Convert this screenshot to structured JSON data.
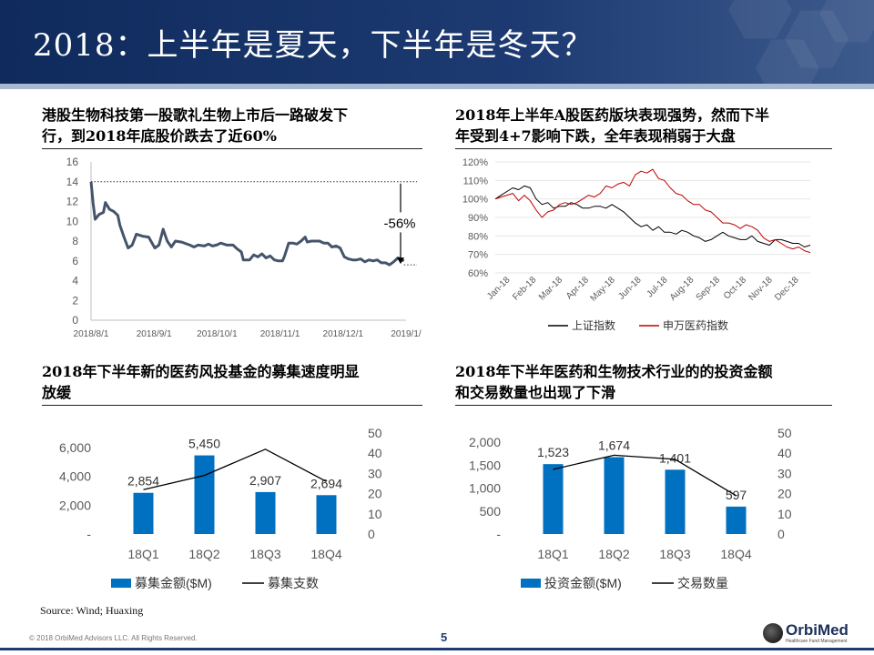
{
  "slide": {
    "title": "2018：上半年是夏天，下半年是冬天？",
    "source": "Source: Wind; Huaxing",
    "copyright": "© 2018 OrbiMed Advisors LLC. All Rights Reserved.",
    "page_number": "5",
    "logo": {
      "name": "OrbiMed",
      "tagline": "Healthcare Fund Management"
    }
  },
  "panels": [
    {
      "title_lines": [
        "港股生物科技第一股歌礼生物上市后一路破发下",
        "行，到2018年底股价跌去了近60%"
      ]
    },
    {
      "title_lines": [
        "2018年上半年A股医药版块表现强势，然而下半",
        "年受到4+7影响下跌，全年表现稍弱于大盘"
      ]
    },
    {
      "title_lines": [
        "2018年下半年新的医药风投基金的募集速度明显",
        "放缓"
      ]
    },
    {
      "title_lines": [
        "2018年下半年医药和生物技术行业的的投资金额",
        "和交易数量也出现了下滑"
      ]
    }
  ],
  "colors": {
    "header": "#1d3b72",
    "line_dark": "#44546a",
    "bar_blue": "#0070c0",
    "red": "#c00000"
  },
  "chart_data": [
    {
      "type": "line",
      "x_ticks": [
        "2018/8/1",
        "2018/9/1",
        "2018/10/1",
        "2018/11/1",
        "2018/12/1",
        "2019/1/"
      ],
      "x_range": [
        "2018-08-01",
        "2019-01-01"
      ],
      "ylim": [
        0,
        16
      ],
      "y_ticks": [
        "0",
        "2",
        "4",
        "6",
        "8",
        "10",
        "12",
        "14",
        "16"
      ],
      "annotation": "-56%",
      "series": [
        {
          "color": "#44546a",
          "points": [
            [
              "2018-08-01",
              14.0
            ],
            [
              "2018-08-02",
              11.8
            ],
            [
              "2018-08-03",
              10.2
            ],
            [
              "2018-08-05",
              10.7
            ],
            [
              "2018-08-07",
              10.9
            ],
            [
              "2018-08-08",
              11.9
            ],
            [
              "2018-08-10",
              11.2
            ],
            [
              "2018-08-12",
              11.0
            ],
            [
              "2018-08-14",
              10.6
            ],
            [
              "2018-08-15",
              9.6
            ],
            [
              "2018-08-17",
              8.4
            ],
            [
              "2018-08-19",
              7.3
            ],
            [
              "2018-08-21",
              7.6
            ],
            [
              "2018-08-23",
              8.7
            ],
            [
              "2018-08-26",
              8.5
            ],
            [
              "2018-08-29",
              8.4
            ],
            [
              "2018-09-01",
              7.3
            ],
            [
              "2018-09-03",
              7.6
            ],
            [
              "2018-09-05",
              9.2
            ],
            [
              "2018-09-07",
              8.0
            ],
            [
              "2018-09-09",
              7.4
            ],
            [
              "2018-09-11",
              8.0
            ],
            [
              "2018-09-14",
              7.9
            ],
            [
              "2018-09-18",
              7.6
            ],
            [
              "2018-09-20",
              7.4
            ],
            [
              "2018-09-22",
              7.6
            ],
            [
              "2018-09-25",
              7.5
            ],
            [
              "2018-09-27",
              7.7
            ],
            [
              "2018-09-29",
              7.5
            ],
            [
              "2018-10-01",
              7.6
            ],
            [
              "2018-10-03",
              7.8
            ],
            [
              "2018-10-06",
              7.6
            ],
            [
              "2018-10-09",
              7.6
            ],
            [
              "2018-10-11",
              7.2
            ],
            [
              "2018-10-13",
              6.9
            ],
            [
              "2018-10-14",
              6.1
            ],
            [
              "2018-10-17",
              6.1
            ],
            [
              "2018-10-19",
              6.6
            ],
            [
              "2018-10-21",
              6.4
            ],
            [
              "2018-10-23",
              6.7
            ],
            [
              "2018-10-25",
              6.3
            ],
            [
              "2018-10-27",
              6.5
            ],
            [
              "2018-10-29",
              6.1
            ],
            [
              "2018-10-31",
              6.0
            ],
            [
              "2018-11-02",
              6.0
            ],
            [
              "2018-11-03",
              6.5
            ],
            [
              "2018-11-05",
              7.8
            ],
            [
              "2018-11-07",
              7.8
            ],
            [
              "2018-11-09",
              7.7
            ],
            [
              "2018-11-11",
              8.0
            ],
            [
              "2018-11-13",
              8.4
            ],
            [
              "2018-11-14",
              7.9
            ],
            [
              "2018-11-16",
              8.0
            ],
            [
              "2018-11-18",
              8.0
            ],
            [
              "2018-11-20",
              8.0
            ],
            [
              "2018-11-22",
              7.8
            ],
            [
              "2018-11-24",
              7.8
            ],
            [
              "2018-11-26",
              7.4
            ],
            [
              "2018-11-28",
              7.5
            ],
            [
              "2018-11-30",
              7.3
            ],
            [
              "2018-12-02",
              6.4
            ],
            [
              "2018-12-04",
              6.2
            ],
            [
              "2018-12-06",
              6.1
            ],
            [
              "2018-12-08",
              6.1
            ],
            [
              "2018-12-10",
              6.2
            ],
            [
              "2018-12-12",
              5.9
            ],
            [
              "2018-12-14",
              6.1
            ],
            [
              "2018-12-16",
              6.0
            ],
            [
              "2018-12-18",
              6.1
            ],
            [
              "2018-12-20",
              5.8
            ],
            [
              "2018-12-22",
              5.8
            ],
            [
              "2018-12-24",
              5.6
            ],
            [
              "2018-12-26",
              5.9
            ],
            [
              "2018-12-28",
              6.3
            ],
            [
              "2018-12-31",
              6.0
            ]
          ]
        }
      ]
    },
    {
      "type": "line",
      "x_ticks": [
        "Jan-18",
        "Feb-18",
        "Mar-18",
        "Apr-18",
        "May-18",
        "Jun-18",
        "Jul-18",
        "Aug-18",
        "Sep-18",
        "Oct-18",
        "Nov-18",
        "Dec-18"
      ],
      "ylim": [
        0.6,
        1.2
      ],
      "y_ticks": [
        "60%",
        "70%",
        "80%",
        "90%",
        "100%",
        "110%",
        "120%"
      ],
      "series": [
        {
          "name": "上证指数",
          "color": "#000000",
          "values": [
            1.0,
            1.02,
            1.04,
            1.06,
            1.05,
            1.07,
            1.06,
            1.0,
            0.97,
            0.98,
            0.95,
            0.96,
            0.96,
            0.98,
            0.97,
            0.95,
            0.95,
            0.96,
            0.96,
            0.95,
            0.97,
            0.95,
            0.93,
            0.9,
            0.87,
            0.85,
            0.86,
            0.83,
            0.85,
            0.82,
            0.82,
            0.81,
            0.83,
            0.82,
            0.8,
            0.79,
            0.77,
            0.78,
            0.8,
            0.82,
            0.8,
            0.79,
            0.78,
            0.78,
            0.8,
            0.77,
            0.76,
            0.75,
            0.78,
            0.78,
            0.77,
            0.76,
            0.76,
            0.74,
            0.75
          ]
        },
        {
          "name": "申万医药指数",
          "color": "#c00000",
          "values": [
            1.0,
            1.01,
            1.02,
            1.03,
            0.99,
            1.02,
            0.99,
            0.94,
            0.9,
            0.93,
            0.94,
            0.97,
            0.98,
            0.97,
            0.98,
            1.0,
            1.02,
            1.01,
            1.03,
            1.07,
            1.06,
            1.08,
            1.09,
            1.07,
            1.13,
            1.15,
            1.14,
            1.16,
            1.11,
            1.1,
            1.06,
            1.03,
            1.02,
            0.99,
            0.97,
            0.97,
            0.94,
            0.93,
            0.9,
            0.87,
            0.87,
            0.86,
            0.84,
            0.86,
            0.85,
            0.83,
            0.79,
            0.77,
            0.78,
            0.76,
            0.74,
            0.73,
            0.74,
            0.72,
            0.71
          ]
        }
      ],
      "legend_position": "bottom"
    },
    {
      "type": "bar",
      "categories": [
        "18Q1",
        "18Q2",
        "18Q3",
        "18Q4"
      ],
      "ylim": [
        0,
        7000
      ],
      "y_ticks": [
        "-",
        "2,000",
        "4,000",
        "6,000"
      ],
      "y2lim": [
        0,
        50
      ],
      "y2_ticks": [
        "0",
        "10",
        "20",
        "30",
        "40",
        "50"
      ],
      "series": [
        {
          "name": "募集金额($M)",
          "kind": "bar",
          "axis": "left",
          "color": "#0070c0",
          "values": [
            2854,
            5450,
            2907,
            2694
          ],
          "labels": [
            "2,854",
            "5,450",
            "2,907",
            "2,694"
          ]
        },
        {
          "name": "募集支数",
          "kind": "line",
          "axis": "right",
          "color": "#000000",
          "values": [
            22,
            29,
            42,
            26
          ]
        }
      ],
      "legend_position": "bottom"
    },
    {
      "type": "bar",
      "categories": [
        "18Q1",
        "18Q2",
        "18Q3",
        "18Q4"
      ],
      "ylim": [
        0,
        2200
      ],
      "y_ticks": [
        "-",
        "500",
        "1,000",
        "1,500",
        "2,000"
      ],
      "y2lim": [
        0,
        50
      ],
      "y2_ticks": [
        "0",
        "10",
        "20",
        "30",
        "40",
        "50"
      ],
      "series": [
        {
          "name": "投资金额($M)",
          "kind": "bar",
          "axis": "left",
          "color": "#0070c0",
          "values": [
            1523,
            1674,
            1401,
            597
          ],
          "labels": [
            "1,523",
            "1,674",
            "1,401",
            "597"
          ]
        },
        {
          "name": "交易数量",
          "kind": "line",
          "axis": "right",
          "color": "#000000",
          "values": [
            32,
            39,
            37,
            19
          ]
        }
      ],
      "legend_position": "bottom"
    }
  ]
}
